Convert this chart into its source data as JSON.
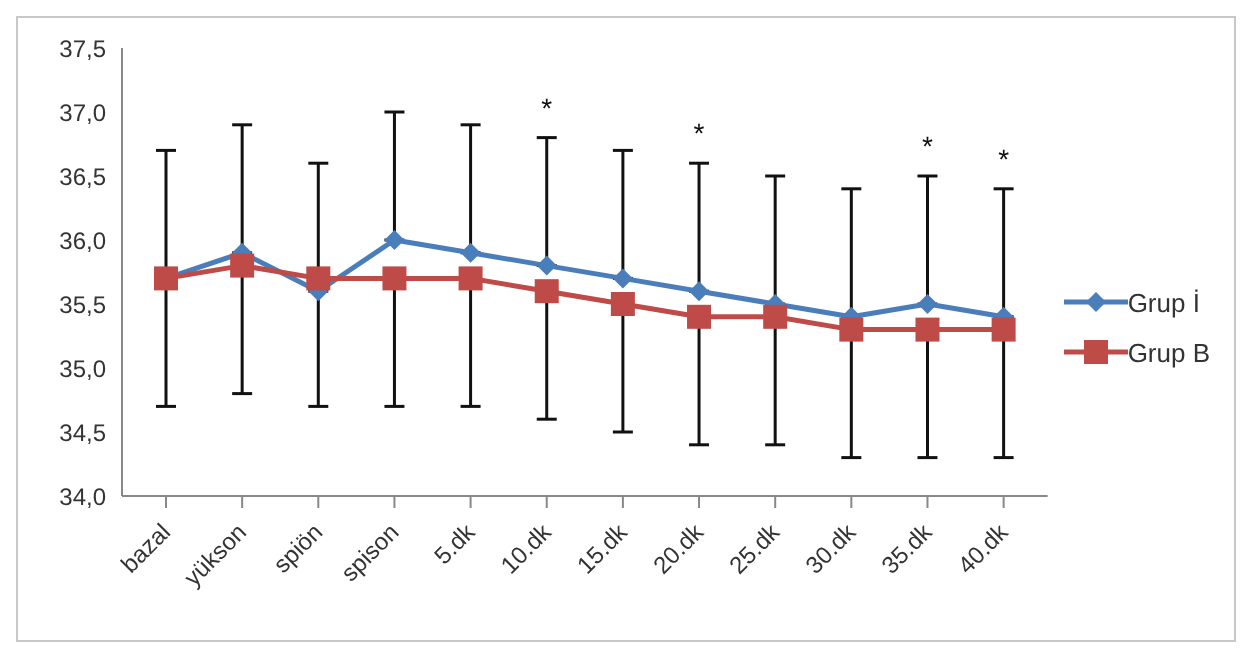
{
  "chart_data": {
    "type": "line",
    "categories": [
      "bazal",
      "yükson",
      "spiön",
      "spison",
      "5.dk",
      "10.dk",
      "15.dk",
      "20.dk",
      "25.dk",
      "30.dk",
      "35.dk",
      "40.dk"
    ],
    "series": [
      {
        "name": "Grup İ",
        "color": "#4a7ebb",
        "marker": "diamond",
        "values": [
          35.7,
          35.9,
          35.6,
          36.0,
          35.9,
          35.8,
          35.7,
          35.6,
          35.5,
          35.4,
          35.5,
          35.4
        ],
        "errors": [
          [
            35.7,
            36.7
          ],
          [
            35.9,
            36.9
          ],
          [
            35.6,
            36.6
          ],
          [
            36.0,
            37.0
          ],
          [
            35.9,
            36.9
          ],
          [
            35.8,
            36.8
          ],
          [
            35.7,
            36.7
          ],
          [
            35.6,
            36.6
          ],
          [
            35.5,
            36.5
          ],
          [
            35.4,
            36.4
          ],
          [
            35.5,
            36.5
          ],
          [
            35.4,
            36.4
          ]
        ]
      },
      {
        "name": "Grup B",
        "color": "#be4b48",
        "marker": "square",
        "values": [
          35.7,
          35.8,
          35.7,
          35.7,
          35.7,
          35.6,
          35.5,
          35.4,
          35.4,
          35.3,
          35.3,
          35.3
        ],
        "errors": [
          [
            34.7,
            35.7
          ],
          [
            34.8,
            35.8
          ],
          [
            34.7,
            35.7
          ],
          [
            34.7,
            35.7
          ],
          [
            34.7,
            35.7
          ],
          [
            34.6,
            35.6
          ],
          [
            34.5,
            35.5
          ],
          [
            34.4,
            35.4
          ],
          [
            34.4,
            35.4
          ],
          [
            34.3,
            35.3
          ],
          [
            34.3,
            35.3
          ],
          [
            34.3,
            35.3
          ]
        ]
      }
    ],
    "ylim": [
      34.0,
      37.5
    ],
    "yticks": [
      {
        "value": 34.0,
        "label": "34,0"
      },
      {
        "value": 34.5,
        "label": "34,5"
      },
      {
        "value": 35.0,
        "label": "35,0"
      },
      {
        "value": 35.5,
        "label": "35,5"
      },
      {
        "value": 36.0,
        "label": "36,0"
      },
      {
        "value": 36.5,
        "label": "36,5"
      },
      {
        "value": 37.0,
        "label": "37,0"
      },
      {
        "value": 37.5,
        "label": "37,5"
      }
    ],
    "grid": false,
    "legend": "right",
    "annotations": [
      {
        "text": "*",
        "x": "10.dk",
        "y": 36.8
      },
      {
        "text": "*",
        "x": "20.dk",
        "y": 36.6
      },
      {
        "text": "*",
        "x": "35.dk",
        "y": 36.5
      },
      {
        "text": "*",
        "x": "40.dk",
        "y": 36.4
      }
    ]
  }
}
